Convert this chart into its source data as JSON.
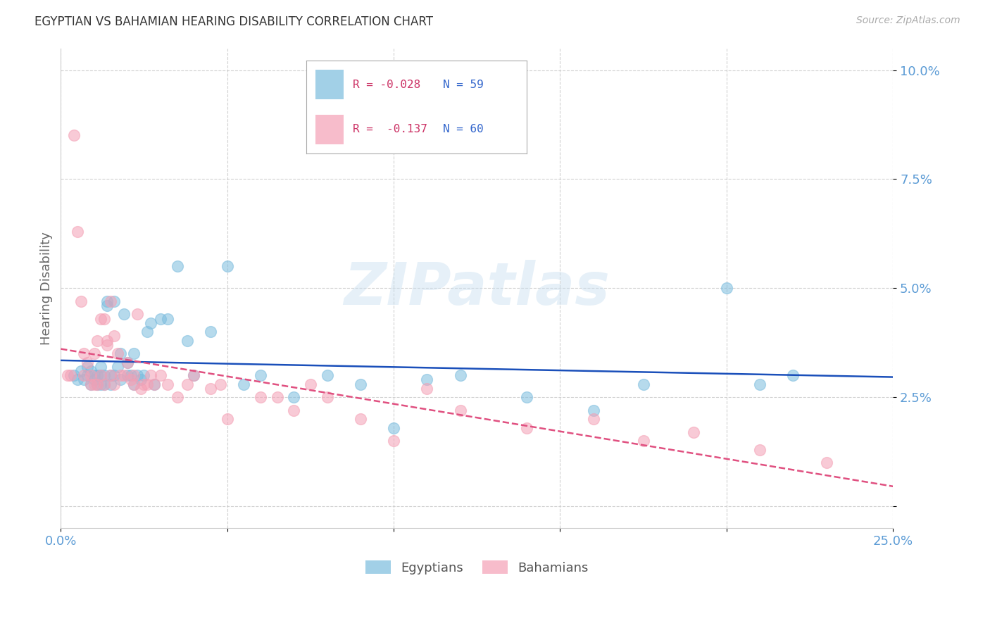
{
  "title": "EGYPTIAN VS BAHAMIAN HEARING DISABILITY CORRELATION CHART",
  "source": "Source: ZipAtlas.com",
  "ylabel": "Hearing Disability",
  "xlim": [
    0.0,
    0.25
  ],
  "ylim": [
    -0.005,
    0.105
  ],
  "yticks": [
    0.0,
    0.025,
    0.05,
    0.075,
    0.1
  ],
  "ytick_labels": [
    "",
    "2.5%",
    "5.0%",
    "7.5%",
    "10.0%"
  ],
  "xticks": [
    0.0,
    0.05,
    0.1,
    0.15,
    0.2,
    0.25
  ],
  "xtick_labels": [
    "0.0%",
    "",
    "",
    "",
    "",
    "25.0%"
  ],
  "color_egyptian": "#7bbcde",
  "color_bahamian": "#f4a0b5",
  "color_line_egyptian": "#1a4fba",
  "color_line_bahamian": "#e05080",
  "color_axis_text": "#5b9bd5",
  "color_grid": "#cccccc",
  "watermark": "ZIPatlas",
  "egyptian_x": [
    0.004,
    0.005,
    0.006,
    0.007,
    0.008,
    0.008,
    0.009,
    0.009,
    0.01,
    0.01,
    0.011,
    0.011,
    0.012,
    0.012,
    0.012,
    0.013,
    0.013,
    0.014,
    0.014,
    0.015,
    0.015,
    0.016,
    0.016,
    0.017,
    0.018,
    0.018,
    0.019,
    0.02,
    0.02,
    0.021,
    0.022,
    0.022,
    0.023,
    0.024,
    0.025,
    0.026,
    0.027,
    0.028,
    0.03,
    0.032,
    0.035,
    0.038,
    0.04,
    0.045,
    0.05,
    0.055,
    0.06,
    0.07,
    0.08,
    0.09,
    0.1,
    0.11,
    0.12,
    0.14,
    0.16,
    0.175,
    0.2,
    0.21,
    0.22
  ],
  "egyptian_y": [
    0.03,
    0.029,
    0.031,
    0.029,
    0.03,
    0.032,
    0.028,
    0.031,
    0.029,
    0.03,
    0.028,
    0.03,
    0.028,
    0.03,
    0.032,
    0.028,
    0.03,
    0.046,
    0.047,
    0.028,
    0.03,
    0.03,
    0.047,
    0.032,
    0.029,
    0.035,
    0.044,
    0.03,
    0.033,
    0.03,
    0.028,
    0.035,
    0.03,
    0.029,
    0.03,
    0.04,
    0.042,
    0.028,
    0.043,
    0.043,
    0.055,
    0.038,
    0.03,
    0.04,
    0.055,
    0.028,
    0.03,
    0.025,
    0.03,
    0.028,
    0.018,
    0.029,
    0.03,
    0.025,
    0.022,
    0.028,
    0.05,
    0.028,
    0.03
  ],
  "bahamian_x": [
    0.002,
    0.003,
    0.004,
    0.005,
    0.006,
    0.007,
    0.007,
    0.008,
    0.009,
    0.009,
    0.01,
    0.01,
    0.011,
    0.011,
    0.012,
    0.012,
    0.013,
    0.013,
    0.014,
    0.014,
    0.015,
    0.015,
    0.016,
    0.016,
    0.017,
    0.018,
    0.019,
    0.02,
    0.021,
    0.022,
    0.022,
    0.023,
    0.024,
    0.025,
    0.026,
    0.027,
    0.028,
    0.03,
    0.032,
    0.035,
    0.038,
    0.04,
    0.045,
    0.048,
    0.05,
    0.06,
    0.065,
    0.07,
    0.075,
    0.08,
    0.09,
    0.1,
    0.11,
    0.12,
    0.14,
    0.16,
    0.175,
    0.19,
    0.21,
    0.23
  ],
  "bahamian_y": [
    0.03,
    0.03,
    0.085,
    0.063,
    0.047,
    0.035,
    0.03,
    0.033,
    0.03,
    0.028,
    0.035,
    0.028,
    0.038,
    0.028,
    0.03,
    0.043,
    0.043,
    0.028,
    0.038,
    0.037,
    0.047,
    0.03,
    0.039,
    0.028,
    0.035,
    0.03,
    0.03,
    0.033,
    0.029,
    0.03,
    0.028,
    0.044,
    0.027,
    0.028,
    0.028,
    0.03,
    0.028,
    0.03,
    0.028,
    0.025,
    0.028,
    0.03,
    0.027,
    0.028,
    0.02,
    0.025,
    0.025,
    0.022,
    0.028,
    0.025,
    0.02,
    0.015,
    0.027,
    0.022,
    0.018,
    0.02,
    0.015,
    0.017,
    0.013,
    0.01
  ],
  "legend_line1_r": "R = -0.028",
  "legend_line1_n": "N = 59",
  "legend_line2_r": "R =  -0.137",
  "legend_line2_n": "N = 60"
}
